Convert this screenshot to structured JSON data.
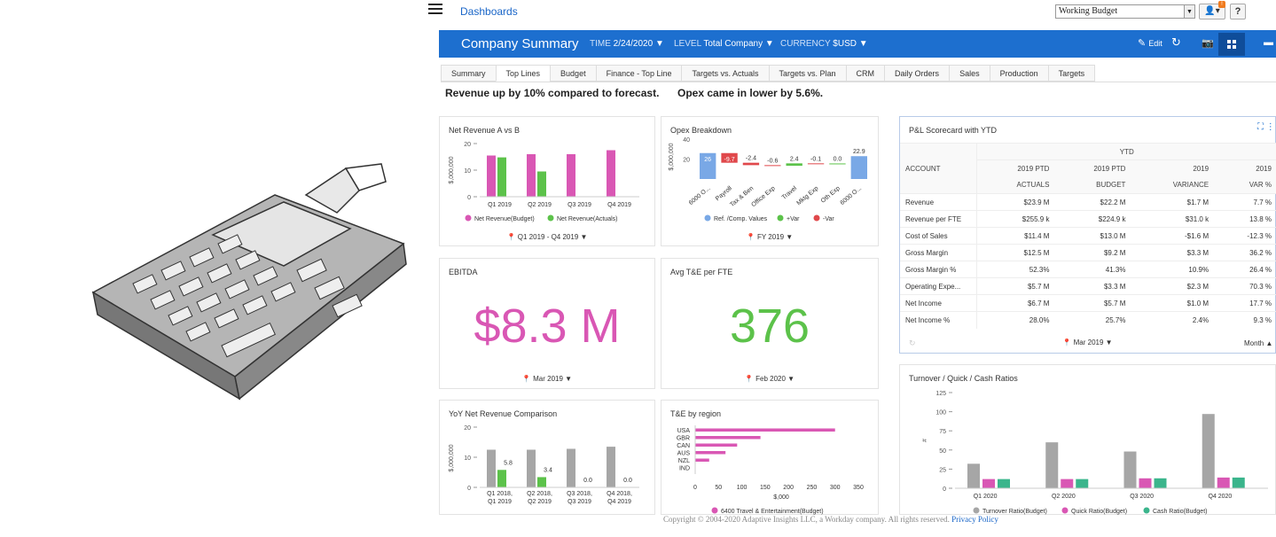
{
  "topbar": {
    "dashboards_link": "Dashboards",
    "version_select": "Working Budget",
    "notification_count": "!",
    "help_label": "?"
  },
  "header": {
    "title": "Company Summary",
    "time_label": "TIME",
    "time_value": "2/24/2020 ▼",
    "level_label": "LEVEL",
    "level_value": "Total Company ▼",
    "currency_label": "CURRENCY",
    "currency_value": "$USD ▼",
    "edit_label": "Edit"
  },
  "tabs": [
    "Summary",
    "Top Lines",
    "Budget",
    "Finance - Top Line",
    "Targets vs. Actuals",
    "Targets vs. Plan",
    "CRM",
    "Daily Orders",
    "Sales",
    "Production",
    "Targets"
  ],
  "active_tab": "Top Lines",
  "headlines": {
    "left": "Revenue up by 10% compared to forecast.",
    "right": "Opex came in lower by 5.6%."
  },
  "widgets": {
    "net_revenue": {
      "title": "Net Revenue A vs B",
      "y_label": "$,000,000",
      "y_ticks": [
        "20",
        "10",
        "0"
      ],
      "legend": [
        "Net Revenue(Budget)",
        "Net Revenue(Actuals)"
      ],
      "filter": "Q1 2019 - Q4 2019 ▼"
    },
    "opex": {
      "title": "Opex Breakdown",
      "y_label": "$,000,000",
      "y_ticks": [
        "40",
        "20"
      ],
      "legend": [
        "Ref. /Comp. Values",
        "+Var",
        "-Var"
      ],
      "filter": "FY 2019 ▼"
    },
    "ebitda": {
      "title": "EBITDA",
      "value": "$8.3 M",
      "filter": "Mar 2019 ▼"
    },
    "avg_te": {
      "title": "Avg T&E per FTE",
      "value": "376",
      "filter": "Feb 2020 ▼"
    },
    "yoy": {
      "title": "YoY Net Revenue Comparison",
      "y_label": "$,000,000",
      "y_ticks": [
        "20",
        "10",
        "0"
      ]
    },
    "te_region": {
      "title": "T&E by region",
      "x_label": "$,000",
      "legend": [
        "6400 Travel & Entertainment(Budget)"
      ]
    },
    "turnover": {
      "title": "Turnover / Quick / Cash Ratios",
      "y_label": "#",
      "y_ticks": [
        "125",
        "100",
        "75",
        "50",
        "25",
        "0"
      ],
      "legend": [
        "Turnover Ratio(Budget)",
        "Quick Ratio(Budget)",
        "Cash Ratio(Budget)"
      ]
    }
  },
  "scorecard": {
    "title": "P&L Scorecard with YTD",
    "group_header": "YTD",
    "account_header": "ACCOUNT",
    "columns": [
      [
        "2019 PTD",
        "ACTUALS"
      ],
      [
        "2019 PTD",
        "BUDGET"
      ],
      [
        "2019",
        "VARIANCE"
      ],
      [
        "2019",
        "VAR %"
      ]
    ],
    "rows": [
      [
        "Revenue",
        "$23.9 M",
        "$22.2 M",
        "$1.7 M",
        "7.7 %"
      ],
      [
        "Revenue per FTE",
        "$255.9 k",
        "$224.9 k",
        "$31.0 k",
        "13.8 %"
      ],
      [
        "Cost of Sales",
        "$11.4 M",
        "$13.0 M",
        "-$1.6 M",
        "-12.3 %"
      ],
      [
        "Gross Margin",
        "$12.5 M",
        "$9.2 M",
        "$3.3 M",
        "36.2 %"
      ],
      [
        "Gross Margin %",
        "52.3%",
        "41.3%",
        "10.9%",
        "26.4 %"
      ],
      [
        "Operating Expe...",
        "$5.7 M",
        "$3.3 M",
        "$2.3 M",
        "70.3 %"
      ],
      [
        "Net Income",
        "$6.7 M",
        "$5.7 M",
        "$1.0 M",
        "17.7 %"
      ],
      [
        "Net Income %",
        "28.0%",
        "25.7%",
        "2.4%",
        "9.3 %"
      ]
    ],
    "filter": "Mar 2019 ▼",
    "period": "Month ▲"
  },
  "chart_data": [
    {
      "type": "bar",
      "title": "Net Revenue A vs B",
      "categories": [
        "Q1 2019",
        "Q2 2019",
        "Q3 2019",
        "Q4 2019"
      ],
      "series": [
        {
          "name": "Net Revenue(Budget)",
          "values": [
            15.5,
            16,
            16,
            17.5
          ]
        },
        {
          "name": "Net Revenue(Actuals)",
          "values": [
            14.8,
            9.5,
            0,
            0
          ]
        }
      ],
      "ylabel": "$,000,000",
      "ylim": [
        0,
        20
      ],
      "colors": [
        "#d957b4",
        "#5cc24a"
      ]
    },
    {
      "type": "bar",
      "title": "Opex Breakdown",
      "categories": [
        "6000 O...",
        "Payroll",
        "Tax & Ben",
        "Office Exp",
        "Travel",
        "Mktg Exp",
        "Oth Exp",
        "6000 O..."
      ],
      "values": [
        26,
        -9.7,
        -2.4,
        -0.6,
        2.4,
        -0.1,
        0.0,
        22.9
      ],
      "data_labels": [
        "26",
        "-9.7",
        "-2.4",
        "-0.6",
        "2.4",
        "-0.1",
        "0.0",
        "22.9"
      ],
      "ylabel": "$,000,000",
      "colors": {
        "ref": "#79a8e6",
        "pos": "#5cc24a",
        "neg": "#e0484b"
      }
    },
    {
      "type": "bar",
      "title": "YoY Net Revenue Comparison",
      "categories": [
        [
          "Q1 2018,",
          "Q1 2019"
        ],
        [
          "Q2 2018,",
          "Q2 2019"
        ],
        [
          "Q3 2018,",
          "Q3 2019"
        ],
        [
          "Q4 2018,",
          "Q4 2019"
        ]
      ],
      "series": [
        {
          "values": [
            12.5,
            12.5,
            12.8,
            13.5
          ]
        },
        {
          "values": [
            5.8,
            3.4,
            0.0,
            0.0
          ]
        }
      ],
      "data_labels": [
        "5.8",
        "3.4",
        "0.0",
        "0.0"
      ],
      "ylabel": "$,000,000",
      "ylim": [
        0,
        20
      ],
      "colors": [
        "#a6a6a6",
        "#5cc24a"
      ]
    },
    {
      "type": "bar",
      "orientation": "horizontal",
      "title": "T&E by region",
      "categories": [
        "USA",
        "GBR",
        "CAN",
        "AUS",
        "NZL",
        "IND"
      ],
      "series": [
        {
          "name": "6400 Travel & Entertainment(Budget)",
          "values": [
            300,
            140,
            90,
            65,
            30,
            0
          ]
        }
      ],
      "xlabel": "$,000",
      "xlim": [
        0,
        350
      ],
      "x_ticks": [
        "0",
        "50",
        "100",
        "150",
        "200",
        "250",
        "300",
        "350"
      ],
      "colors": [
        "#d957b4"
      ]
    },
    {
      "type": "bar",
      "title": "Turnover / Quick / Cash Ratios",
      "categories": [
        "Q1 2020",
        "Q2 2020",
        "Q3 2020",
        "Q4 2020"
      ],
      "series": [
        {
          "name": "Turnover Ratio(Budget)",
          "values": [
            32,
            60,
            48,
            97
          ]
        },
        {
          "name": "Quick Ratio(Budget)",
          "values": [
            12,
            12,
            13,
            14
          ]
        },
        {
          "name": "Cash Ratio(Budget)",
          "values": [
            12,
            12,
            13,
            14
          ]
        }
      ],
      "ylabel": "#",
      "ylim": [
        0,
        125
      ],
      "colors": [
        "#a6a6a6",
        "#d957b4",
        "#3bb58c"
      ]
    }
  ],
  "copyright": {
    "text": "Copyright © 2004-2020 Adaptive Insights LLC, a Workday company. All rights reserved.",
    "privacy_link": "Privacy Policy"
  }
}
